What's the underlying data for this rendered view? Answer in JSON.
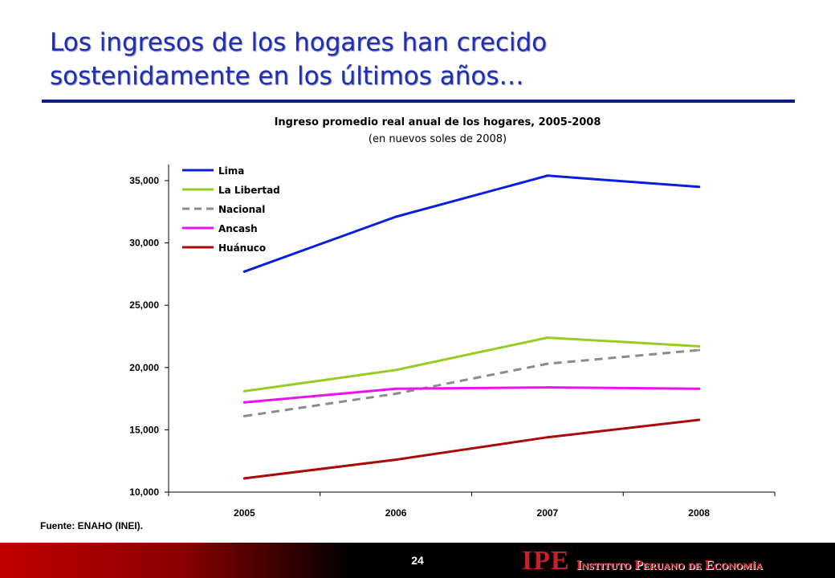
{
  "slide": {
    "title_line1": "Los ingresos de los hogares han crecido",
    "title_line2": "sostenidamente en los últimos años…",
    "source": "Fuente: ENAHO (INEI).",
    "page_number": "24",
    "brand_logo": "IPE",
    "brand_name": "Instituto Peruano de Economía"
  },
  "colors": {
    "title": "#1f2fb0",
    "rule": "#0d1a8a",
    "brand": "#c8202a"
  },
  "chart_data": {
    "type": "line",
    "title": "Ingreso promedio real anual de los hogares, 2005-2008",
    "subtitle": "(en nuevos soles de 2008)",
    "xlabel": "",
    "ylabel": "",
    "categories": [
      "2005",
      "2006",
      "2007",
      "2008"
    ],
    "ylim": [
      10000,
      36000
    ],
    "yticks": [
      10000,
      15000,
      20000,
      25000,
      30000,
      35000
    ],
    "ytick_labels": [
      "10,000",
      "15,000",
      "20,000",
      "25,000",
      "30,000",
      "35,000"
    ],
    "grid": false,
    "legend_position": "top-left",
    "series": [
      {
        "name": "Lima",
        "color": "#0a1ee0",
        "dashed": false,
        "values": [
          27700,
          32100,
          35400,
          34500
        ]
      },
      {
        "name": "La Libertad",
        "color": "#99cc22",
        "dashed": false,
        "values": [
          18100,
          19800,
          22400,
          21700
        ]
      },
      {
        "name": "Nacional",
        "color": "#8c8c8c",
        "dashed": true,
        "values": [
          16100,
          17900,
          20300,
          21400
        ]
      },
      {
        "name": "Ancash",
        "color": "#ee11ee",
        "dashed": false,
        "values": [
          17200,
          18300,
          18400,
          18300
        ]
      },
      {
        "name": "Huánuco",
        "color": "#aa0a0a",
        "dashed": false,
        "values": [
          11100,
          12600,
          14400,
          15800
        ]
      }
    ]
  }
}
